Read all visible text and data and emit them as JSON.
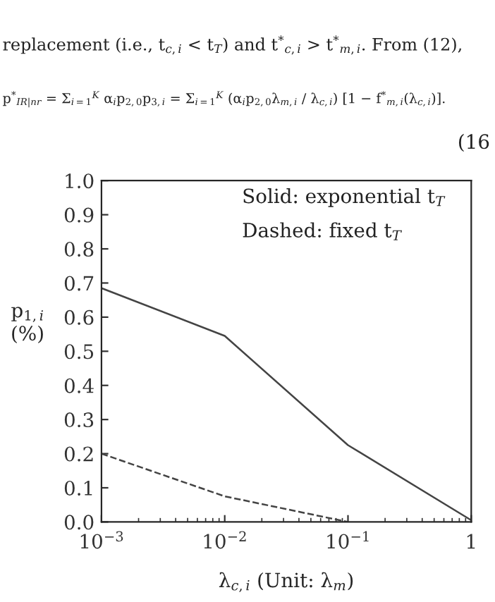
{
  "chart_data": {
    "type": "line",
    "xlabel": "λ$_{c,i}$ (Unit: λ$_{m}$)",
    "ylabel": "p$_{1,i}$\n(%)",
    "annotations": [
      "replacement (i.e., t$_{c,i}$ < t$_{T}$) and t$^{*}$$_{c,i}$ > t$^{*}$$_{m,i}$. From (12),",
      "p$^{*}$$_{IR|nr}$ = Σ$_{i=1}$$^{K}$ α$_{i}$p$_{2,0}$p$_{3,i}$ = Σ$_{i=1}$$^{K}$ (α$_{i}$p$_{2,0}$λ$_{m,i}$ / λ$_{c,i}$) [1 − f$^{*}$$_{m,i}$(λ$_{c,i}$)].",
      "(16",
      "Solid: exponential t$_{T}$",
      "Dashed: fixed t$_{T}$"
    ],
    "series": [
      {
        "color": "#444444",
        "line_style": "solid",
        "x": [
          0.001,
          0.01,
          0.1,
          1
        ],
        "values": [
          0.685,
          0.545,
          0.225,
          0.005
        ]
      },
      {
        "color": "#444444",
        "line_style": "dashed",
        "x": [
          0.001,
          0.01,
          0.1
        ],
        "values": [
          0.2,
          0.075,
          0.0
        ]
      }
    ],
    "log": "x",
    "xlim": [
      0.001,
      1
    ],
    "xticks": [
      {
        "value": 0.001,
        "label": "10$^{−3}$"
      },
      {
        "value": 0.01,
        "label": "10$^{−2}$"
      },
      {
        "value": 0.1,
        "label": "10$^{−1}$"
      },
      1
    ],
    "ylim": [
      0,
      1
    ],
    "yticks": [
      {
        "value": 0,
        "label": "0.0"
      },
      0.1,
      0.2,
      0.3,
      0.4,
      0.5,
      0.6,
      0.7,
      0.8,
      0.9,
      {
        "value": 1,
        "label": "1.0"
      }
    ],
    "grid": false,
    "legend": false,
    "marker": "none"
  }
}
